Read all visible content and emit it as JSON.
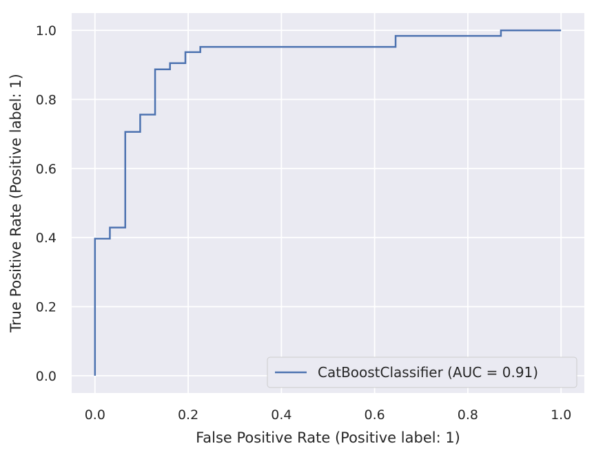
{
  "chart_data": {
    "type": "line",
    "title": "",
    "xlabel": "False Positive Rate (Positive label: 1)",
    "ylabel": "True Positive Rate (Positive label: 1)",
    "xlim": [
      -0.05,
      1.05
    ],
    "ylim": [
      -0.05,
      1.05
    ],
    "xticks": [
      0.0,
      0.2,
      0.4,
      0.6,
      0.8,
      1.0
    ],
    "yticks": [
      0.0,
      0.2,
      0.4,
      0.6,
      0.8,
      1.0
    ],
    "xtick_labels": [
      "0.0",
      "0.2",
      "0.4",
      "0.6",
      "0.8",
      "1.0"
    ],
    "ytick_labels": [
      "0.0",
      "0.2",
      "0.4",
      "0.6",
      "0.8",
      "1.0"
    ],
    "grid": true,
    "legend_position": "lower-right",
    "background": "#eaeaf2",
    "series": [
      {
        "name": "CatBoostClassifier (AUC = 0.91)",
        "color": "#4c72b0",
        "x": [
          0.0,
          0.0,
          0.032,
          0.032,
          0.065,
          0.065,
          0.097,
          0.097,
          0.129,
          0.129,
          0.161,
          0.161,
          0.194,
          0.194,
          0.226,
          0.226,
          0.645,
          0.645,
          0.871,
          0.871,
          1.0
        ],
        "y": [
          0.0,
          0.397,
          0.397,
          0.429,
          0.429,
          0.706,
          0.706,
          0.756,
          0.756,
          0.887,
          0.887,
          0.905,
          0.905,
          0.937,
          0.937,
          0.952,
          0.952,
          0.984,
          0.984,
          1.0,
          1.0
        ]
      }
    ]
  }
}
